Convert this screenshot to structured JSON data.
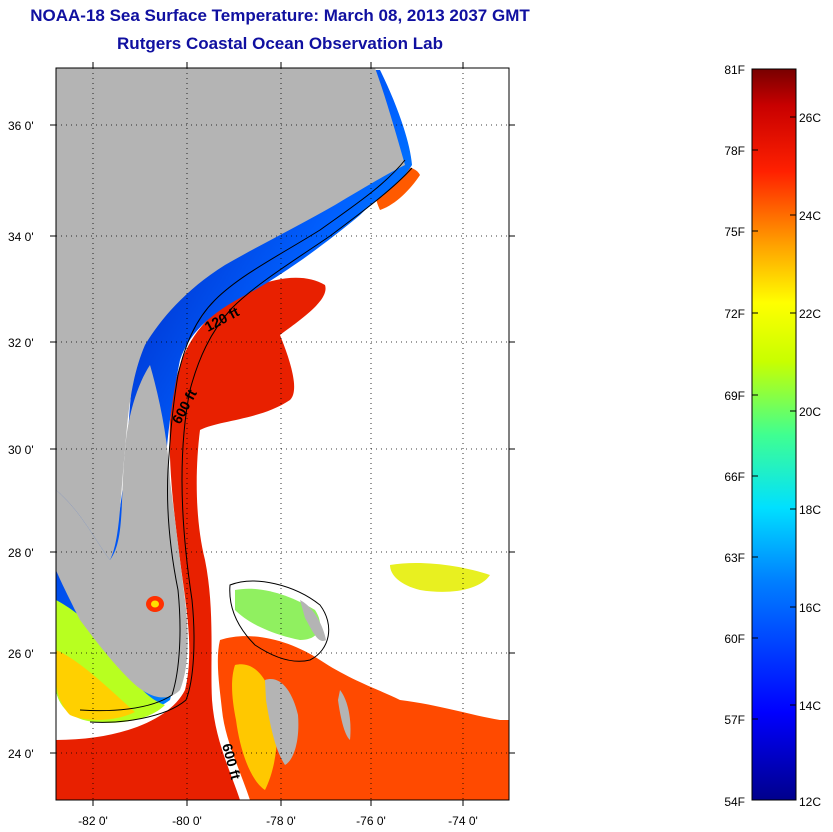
{
  "title": "NOAA-18 Sea Surface Temperature:  March 08, 2013 2037 GMT",
  "subtitle": "Rutgers Coastal Ocean Observation Lab",
  "y_ticks": [
    "36 0'",
    "34 0'",
    "32 0'",
    "30 0'",
    "28 0'",
    "26 0'",
    "24 0'"
  ],
  "x_ticks": [
    "-82 0'",
    "-80 0'",
    "-78 0'",
    "-76 0'",
    "-74 0'"
  ],
  "contour_labels": [
    "120 ft",
    "600 ft",
    "600 ft"
  ],
  "colorbar": {
    "fahrenheit_labels": [
      "81F",
      "78F",
      "75F",
      "72F",
      "69F",
      "66F",
      "63F",
      "60F",
      "57F",
      "54F"
    ],
    "celsius_labels": [
      "26C",
      "24C",
      "22C",
      "20C",
      "18C",
      "16C",
      "14C",
      "12C"
    ],
    "range_c": [
      12,
      27
    ]
  },
  "colors": {
    "title": "#1010a0",
    "land": "#b4b4b4",
    "cold": "#00008c",
    "warm": "#c80000"
  }
}
